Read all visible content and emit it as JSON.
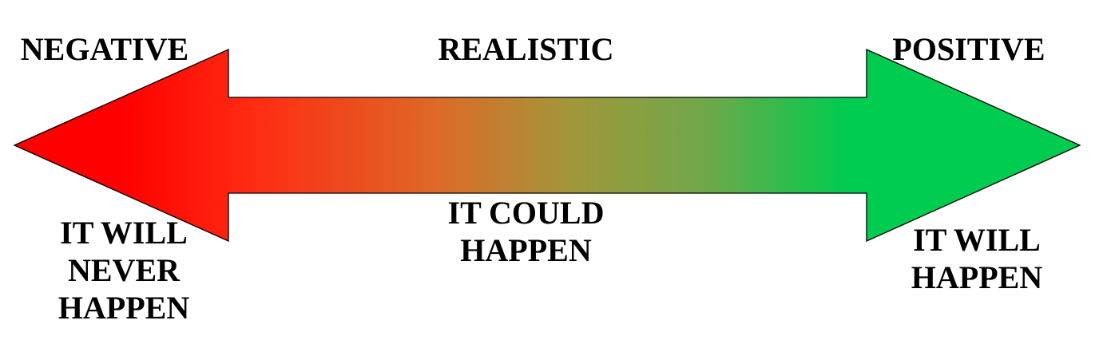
{
  "colors": {
    "negative": "#ff0000",
    "mid": "#999933",
    "positive": "#00cc4f",
    "outline": "#000000",
    "text": "#000000"
  },
  "labels": {
    "top_left": "NEGATIVE",
    "top_center": "REALISTIC",
    "top_right": "POSITIVE",
    "bottom_left": "IT WILL\nNEVER\nHAPPEN",
    "bottom_center": "IT COULD\nHAPPEN",
    "bottom_right": "IT WILL\nHAPPEN"
  }
}
